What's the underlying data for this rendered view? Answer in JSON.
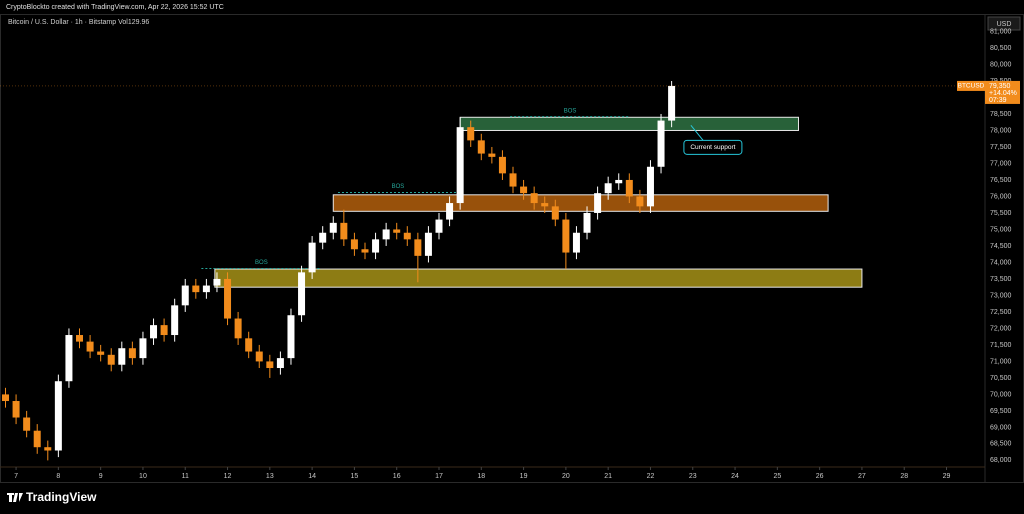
{
  "header": {
    "watermark": "CryptoBlockto created with TradingView.com, Apr 22, 2026 15:52 UTC",
    "brand": "TradingView"
  },
  "chart_data": {
    "type": "candlestick",
    "title": "Bitcoin / U.S. Dollar · 1h · Bitstamp  Vol129.96",
    "currency": "USD",
    "symbol": "BTCUSD",
    "last": {
      "value": 79350,
      "label": "79,350"
    },
    "change": "+14.04%",
    "countdown": "07:39",
    "up_color": "#ffffff",
    "down_color": "#f28c1c",
    "grid": false,
    "x": [
      6.75,
      7,
      7.25,
      7.5,
      7.75,
      8,
      8.25,
      8.5,
      8.75,
      9,
      9.25,
      9.5,
      9.75,
      10,
      10.25,
      10.5,
      10.75,
      11,
      11.25,
      11.5,
      11.75,
      12,
      12.25,
      12.5,
      12.75,
      13,
      13.25,
      13.5,
      13.75,
      14,
      14.25,
      14.5,
      14.75,
      15,
      15.25,
      15.5,
      15.75,
      16,
      16.25,
      16.5,
      16.75,
      17,
      17.25,
      17.5,
      17.75,
      18,
      18.25,
      18.5,
      18.75,
      19,
      19.25,
      19.5,
      19.75,
      20,
      20.25,
      20.5,
      20.75,
      21,
      21.25,
      21.5,
      21.75,
      22,
      22.25,
      22.5
    ],
    "open": [
      70000,
      69800,
      69300,
      68900,
      68400,
      68300,
      70400,
      71800,
      71600,
      71300,
      71200,
      70900,
      71400,
      71100,
      71700,
      72100,
      71800,
      72700,
      73300,
      73100,
      73300,
      73500,
      72300,
      71700,
      71300,
      71000,
      70800,
      71100,
      72400,
      73700,
      74600,
      74900,
      75200,
      74700,
      74400,
      74300,
      74700,
      75000,
      74900,
      74700,
      74200,
      74900,
      75300,
      75800,
      78100,
      77700,
      77300,
      77200,
      76700,
      76300,
      76100,
      75800,
      75700,
      75300,
      74300,
      74900,
      75500,
      76100,
      76400,
      76500,
      76000,
      75700,
      76900,
      78300
    ],
    "high": [
      70200,
      70000,
      69500,
      69100,
      68600,
      70600,
      72000,
      72000,
      71800,
      71500,
      71400,
      71600,
      71600,
      71900,
      72300,
      72300,
      72900,
      73500,
      73500,
      73500,
      73700,
      73700,
      72500,
      71900,
      71500,
      71200,
      71300,
      72600,
      73900,
      74800,
      75100,
      75400,
      75600,
      74900,
      74600,
      74900,
      75200,
      75200,
      75100,
      74900,
      75100,
      75500,
      76000,
      78400,
      78300,
      77900,
      77500,
      77400,
      76900,
      76500,
      76300,
      76000,
      75900,
      75500,
      75100,
      75700,
      76300,
      76600,
      76700,
      76700,
      76200,
      77100,
      78500,
      79500
    ],
    "low": [
      69600,
      69100,
      68700,
      68200,
      68000,
      68100,
      70200,
      71400,
      71100,
      71000,
      70700,
      70700,
      70900,
      70900,
      71500,
      71600,
      71600,
      72500,
      72900,
      72900,
      73100,
      72100,
      71500,
      71100,
      70800,
      70500,
      70600,
      70900,
      72200,
      73500,
      74400,
      74700,
      74500,
      74200,
      74100,
      74100,
      74500,
      74700,
      74500,
      73400,
      74000,
      74700,
      75100,
      75600,
      77500,
      77100,
      77000,
      76500,
      76100,
      75900,
      75600,
      75500,
      75100,
      73800,
      74100,
      74700,
      75300,
      75900,
      76200,
      75800,
      75500,
      75500,
      76700,
      78100
    ],
    "close": [
      69800,
      69300,
      68900,
      68400,
      68300,
      70400,
      71800,
      71600,
      71300,
      71200,
      70900,
      71400,
      71100,
      71700,
      72100,
      71800,
      72700,
      73300,
      73100,
      73300,
      73500,
      72300,
      71700,
      71300,
      71000,
      70800,
      71100,
      72400,
      73700,
      74600,
      74900,
      75200,
      74700,
      74400,
      74300,
      74700,
      75000,
      74900,
      74700,
      74200,
      74900,
      75300,
      75800,
      78100,
      77700,
      77300,
      77200,
      76700,
      76300,
      76100,
      75800,
      75700,
      75300,
      74300,
      74900,
      75500,
      76100,
      76400,
      76500,
      76000,
      75700,
      76900,
      78300,
      79350
    ],
    "zones": [
      {
        "x0": 11.7,
        "x1": 27,
        "y0": 73250,
        "y1": 73800,
        "color": "#9c8a16"
      },
      {
        "x0": 14.5,
        "x1": 26.2,
        "y0": 75550,
        "y1": 76050,
        "color": "#a85a0c"
      },
      {
        "x0": 17.5,
        "x1": 25.5,
        "y0": 78000,
        "y1": 78400,
        "color": "#2c6b3f"
      }
    ],
    "annotations": [
      {
        "text": "BOS",
        "x": 12.8,
        "y": 74000
      },
      {
        "text": "BOS",
        "x": 16.03,
        "y": 76300
      },
      {
        "text": "BOS",
        "x": 20.1,
        "y": 78600
      }
    ],
    "callout": {
      "text": "Current support",
      "x": 23.5,
      "y": 77550
    },
    "xlim": [
      6.62,
      29.91
    ],
    "xticks": [
      7,
      8,
      9,
      10,
      11,
      12,
      13,
      14,
      15,
      16,
      17,
      18,
      19,
      20,
      21,
      22,
      23,
      24,
      25,
      26,
      27,
      28,
      29
    ],
    "ylim": [
      67800,
      81500
    ],
    "yticks": [
      {
        "value": 68000,
        "label": "68,000"
      },
      {
        "value": 68500,
        "label": "68,500"
      },
      {
        "value": 69000,
        "label": "69,000"
      },
      {
        "value": 69500,
        "label": "69,500"
      },
      {
        "value": 70000,
        "label": "70,000"
      },
      {
        "value": 70500,
        "label": "70,500"
      },
      {
        "value": 71000,
        "label": "71,000"
      },
      {
        "value": 71500,
        "label": "71,500"
      },
      {
        "value": 72000,
        "label": "72,000"
      },
      {
        "value": 72500,
        "label": "72,500"
      },
      {
        "value": 73000,
        "label": "73,000"
      },
      {
        "value": 73500,
        "label": "73,500"
      },
      {
        "value": 74000,
        "label": "74,000"
      },
      {
        "value": 74500,
        "label": "74,500"
      },
      {
        "value": 75000,
        "label": "75,000"
      },
      {
        "value": 75500,
        "label": "75,500"
      },
      {
        "value": 76000,
        "label": "76,000"
      },
      {
        "value": 76500,
        "label": "76,500"
      },
      {
        "value": 77000,
        "label": "77,000"
      },
      {
        "value": 77500,
        "label": "77,500"
      },
      {
        "value": 78000,
        "label": "78,000"
      },
      {
        "value": 78500,
        "label": "78,500"
      },
      {
        "value": 79000,
        "label": "79,000"
      },
      {
        "value": 79500,
        "label": "79,500"
      },
      {
        "value": 80000,
        "label": "80,000"
      },
      {
        "value": 80500,
        "label": "80,500"
      },
      {
        "value": 81000,
        "label": "81,000"
      }
    ]
  }
}
